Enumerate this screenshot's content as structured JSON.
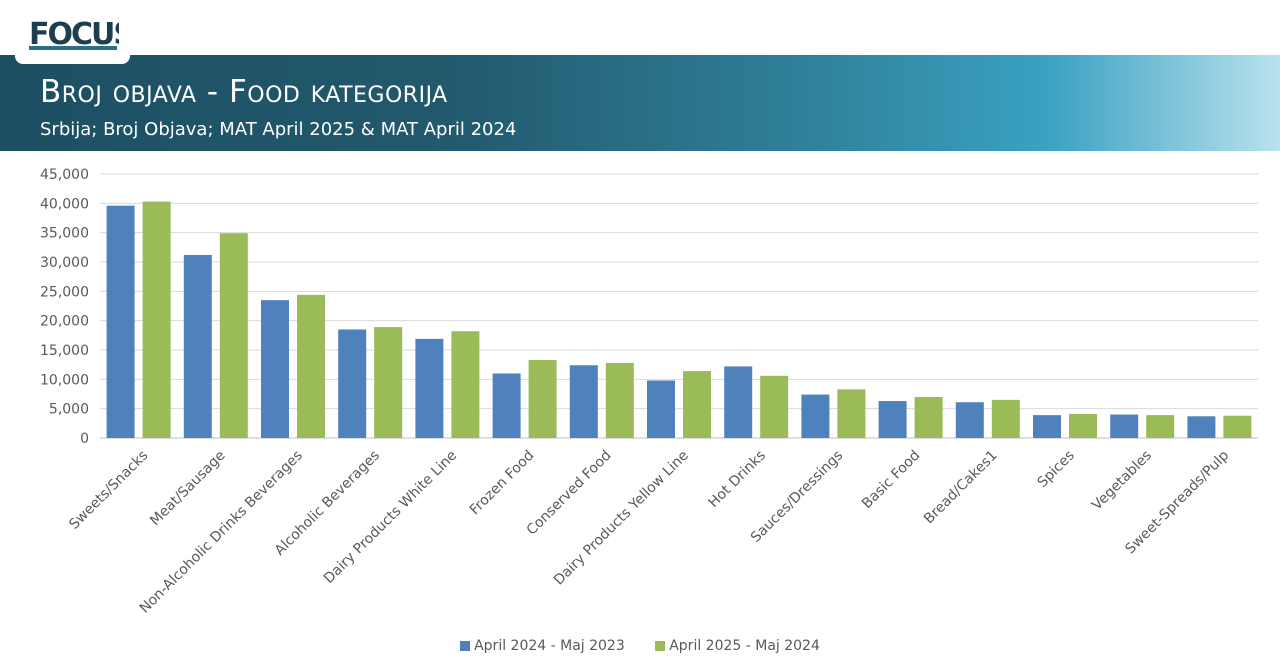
{
  "logo": {
    "text": "FOCUS"
  },
  "header": {
    "title": "Broj objava - Food kategorija",
    "subtitle": "Srbija; Broj Objava; MAT April 2025 & MAT April 2024"
  },
  "colors": {
    "series1": "#4f81bd",
    "series2": "#9bbb59"
  },
  "chart_data": {
    "type": "bar",
    "categories": [
      "Sweets/Snacks",
      "Meat/Sausage",
      "Non-Alcoholic Drinks Beverages",
      "Alcoholic Beverages",
      "Dairy Products White Line",
      "Frozen Food",
      "Conserved Food",
      "Dairy Products Yellow Line",
      "Hot Drinks",
      "Sauces/Dressings",
      "Basic Food",
      "Bread/Cakes1",
      "Spices",
      "Vegetables",
      "Sweet-Spreads/Pulp"
    ],
    "series": [
      {
        "name": "April 2024 - Maj 2023",
        "color": "#4f81bd",
        "values": [
          39600,
          31200,
          23500,
          18500,
          16900,
          11000,
          12400,
          9800,
          12200,
          7400,
          6300,
          6100,
          3900,
          4000,
          3700
        ]
      },
      {
        "name": "April 2025 - Maj 2024",
        "color": "#9bbb59",
        "values": [
          40300,
          34900,
          24400,
          18900,
          18200,
          13300,
          12800,
          11400,
          10600,
          8300,
          7000,
          6500,
          4100,
          3900,
          3800
        ]
      }
    ],
    "ylim": [
      0,
      45000
    ],
    "yticks": [
      "0",
      "5,000",
      "10,000",
      "15,000",
      "20,000",
      "25,000",
      "30,000",
      "35,000",
      "40,000",
      "45,000"
    ],
    "grid": true,
    "legend": "bottom"
  }
}
